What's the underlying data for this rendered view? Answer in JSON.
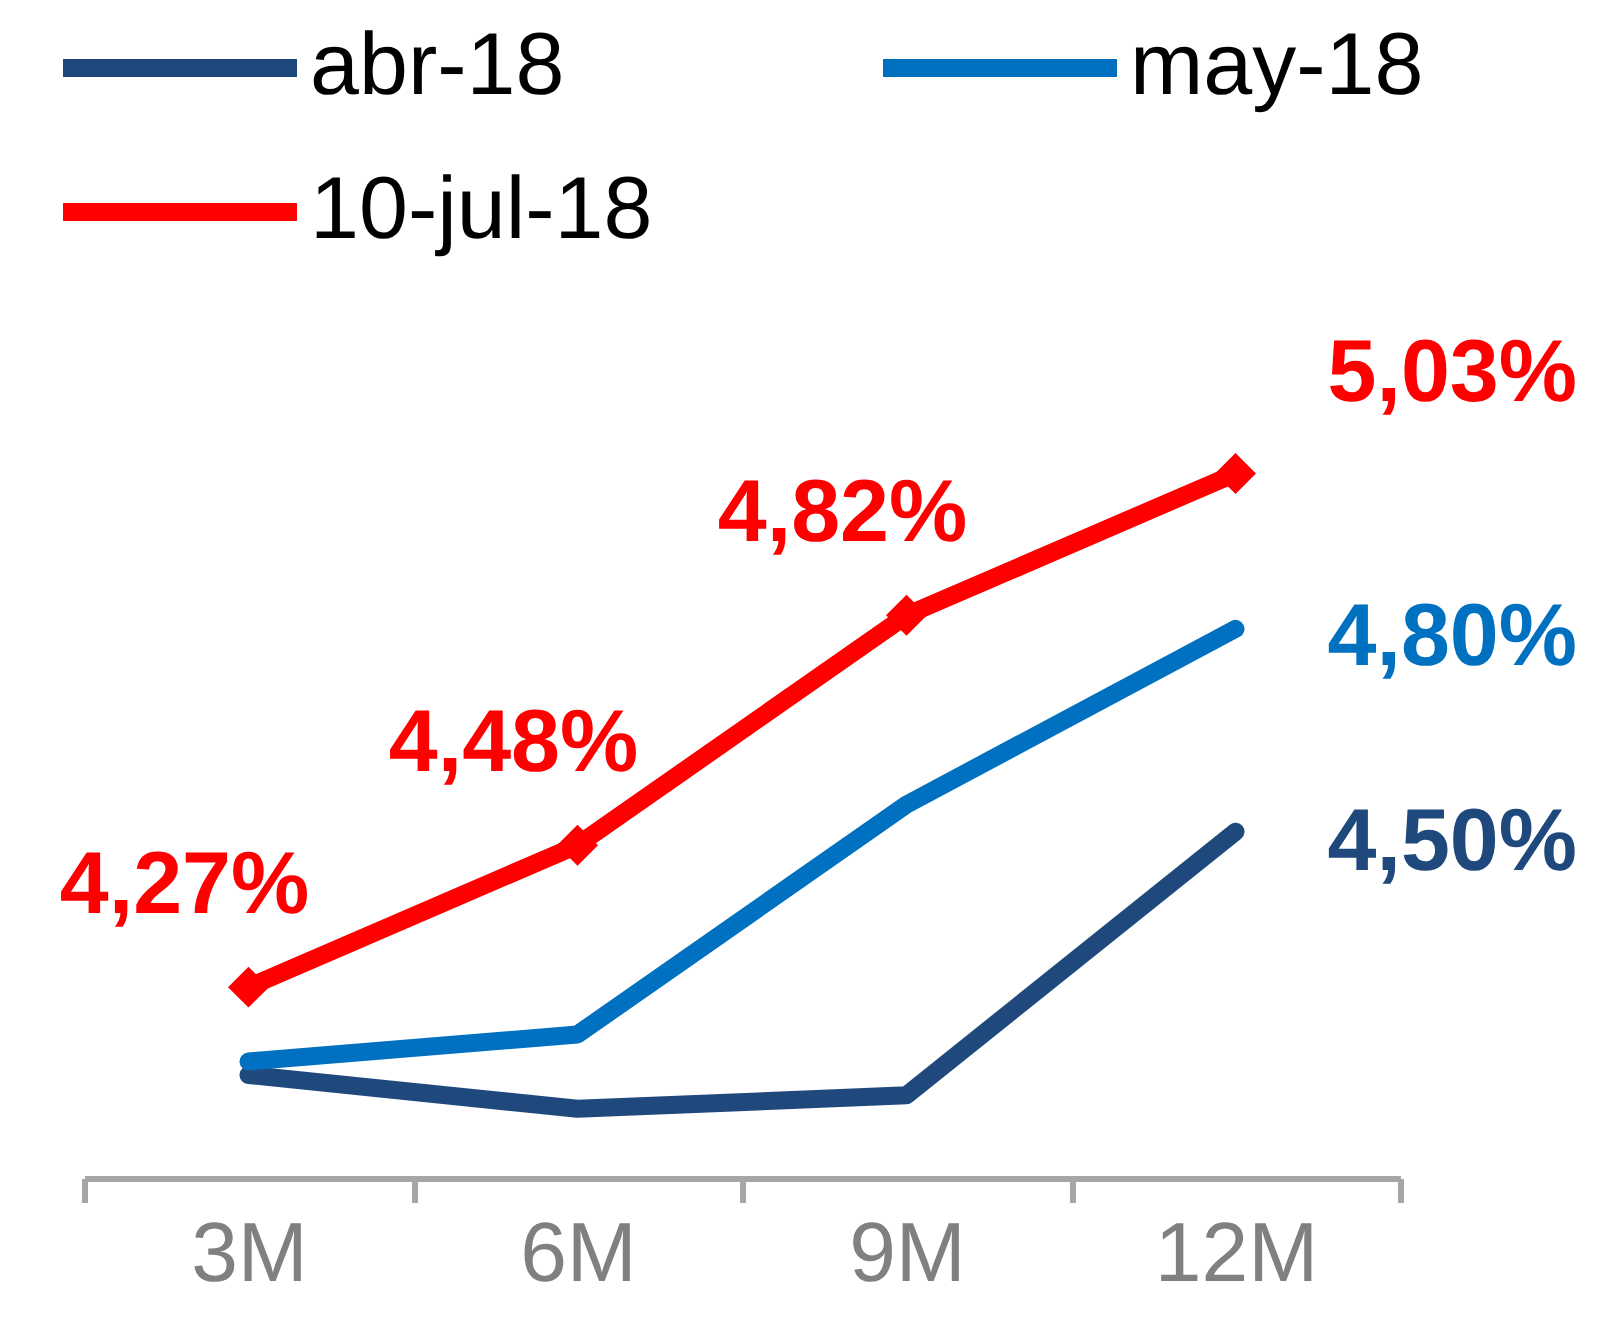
{
  "chart_data": {
    "type": "line",
    "categories": [
      "3M",
      "6M",
      "9M",
      "12M"
    ],
    "series": [
      {
        "name": "abr-18",
        "color": "#1f497d",
        "values": [
          4.14,
          4.09,
          4.11,
          4.5
        ],
        "value_labels": [
          null,
          null,
          null,
          "4,50%"
        ],
        "marker": "none"
      },
      {
        "name": "may-18",
        "color": "#0070c0",
        "values": [
          4.16,
          4.2,
          4.54,
          4.8
        ],
        "value_labels": [
          null,
          null,
          null,
          "4,80%"
        ],
        "marker": "none"
      },
      {
        "name": "10-jul-18",
        "color": "#ff0000",
        "values": [
          4.27,
          4.48,
          4.82,
          5.03
        ],
        "value_labels": [
          "4,27%",
          "4,48%",
          "4,82%",
          "5,03%"
        ],
        "marker": "diamond"
      }
    ],
    "tick_labels": "x",
    "legend": "top left",
    "line_style": "solid"
  }
}
